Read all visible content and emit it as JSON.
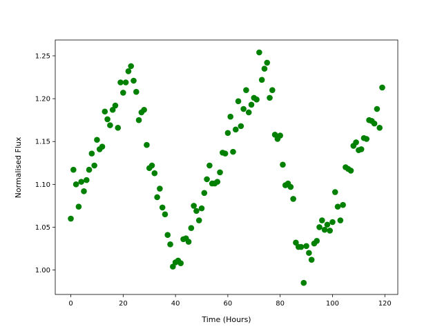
{
  "chart_data": {
    "type": "scatter",
    "x_label": "Time (Hours)",
    "y_label": "Normalised Flux",
    "color": "#008000",
    "x": [
      0,
      1,
      2,
      3,
      4,
      5,
      6,
      7,
      8,
      9,
      10,
      11,
      12,
      13,
      14,
      15,
      16,
      17,
      18,
      19,
      20,
      21,
      22,
      23,
      24,
      25,
      26,
      27,
      28,
      29,
      30,
      31,
      32,
      33,
      34,
      35,
      36,
      37,
      38,
      39,
      40,
      41,
      42,
      43,
      44,
      45,
      46,
      47,
      48,
      49,
      50,
      51,
      52,
      53,
      54,
      55,
      56,
      57,
      58,
      59,
      60,
      61,
      62,
      63,
      64,
      65,
      66,
      67,
      68,
      69,
      70,
      71,
      72,
      73,
      74,
      75,
      76,
      77,
      78,
      79,
      80,
      81,
      82,
      83,
      84,
      85,
      86,
      87,
      88,
      89,
      90,
      91,
      92,
      93,
      94,
      95,
      96,
      97,
      98,
      99,
      100,
      101,
      102,
      103,
      104,
      105,
      106,
      107,
      108,
      109,
      110,
      111,
      112,
      113,
      114,
      115,
      116,
      117,
      118,
      119
    ],
    "values": [
      1.06,
      1.117,
      1.1,
      1.074,
      1.103,
      1.092,
      1.105,
      1.117,
      1.136,
      1.122,
      1.152,
      1.141,
      1.144,
      1.185,
      1.176,
      1.169,
      1.187,
      1.192,
      1.166,
      1.219,
      1.207,
      1.219,
      1.232,
      1.238,
      1.221,
      1.208,
      1.175,
      1.184,
      1.187,
      1.146,
      1.119,
      1.122,
      1.113,
      1.085,
      1.095,
      1.073,
      1.065,
      1.041,
      1.03,
      1.004,
      1.009,
      1.011,
      1.008,
      1.036,
      1.037,
      1.033,
      1.049,
      1.075,
      1.069,
      1.058,
      1.072,
      1.09,
      1.106,
      1.122,
      1.101,
      1.101,
      1.103,
      1.114,
      1.137,
      1.136,
      1.16,
      1.179,
      1.138,
      1.164,
      1.197,
      1.168,
      1.188,
      1.21,
      1.184,
      1.193,
      1.201,
      1.199,
      1.254,
      1.222,
      1.235,
      1.242,
      1.201,
      1.21,
      1.158,
      1.153,
      1.157,
      1.123,
      1.099,
      1.101,
      1.097,
      1.083,
      1.032,
      1.027,
      1.027,
      0.985,
      1.028,
      1.02,
      1.012,
      1.031,
      1.034,
      1.05,
      1.058,
      1.047,
      1.053,
      1.046,
      1.056,
      1.091,
      1.074,
      1.058,
      1.076,
      1.12,
      1.118,
      1.116,
      1.145,
      1.149,
      1.14,
      1.141,
      1.154,
      1.153,
      1.175,
      1.174,
      1.171,
      1.188,
      1.166,
      1.213
    ],
    "xlim": [
      -5.95,
      124.95
    ],
    "xticks": [
      0,
      20,
      40,
      60,
      80,
      100,
      120
    ],
    "ylim": [
      0.9715,
      1.2685
    ],
    "yticks": [
      {
        "value": 1.0,
        "label": "1.00"
      },
      1.05,
      {
        "value": 1.1,
        "label": "1.10"
      },
      1.15,
      {
        "value": 1.2,
        "label": "1.20"
      },
      1.25
    ]
  }
}
